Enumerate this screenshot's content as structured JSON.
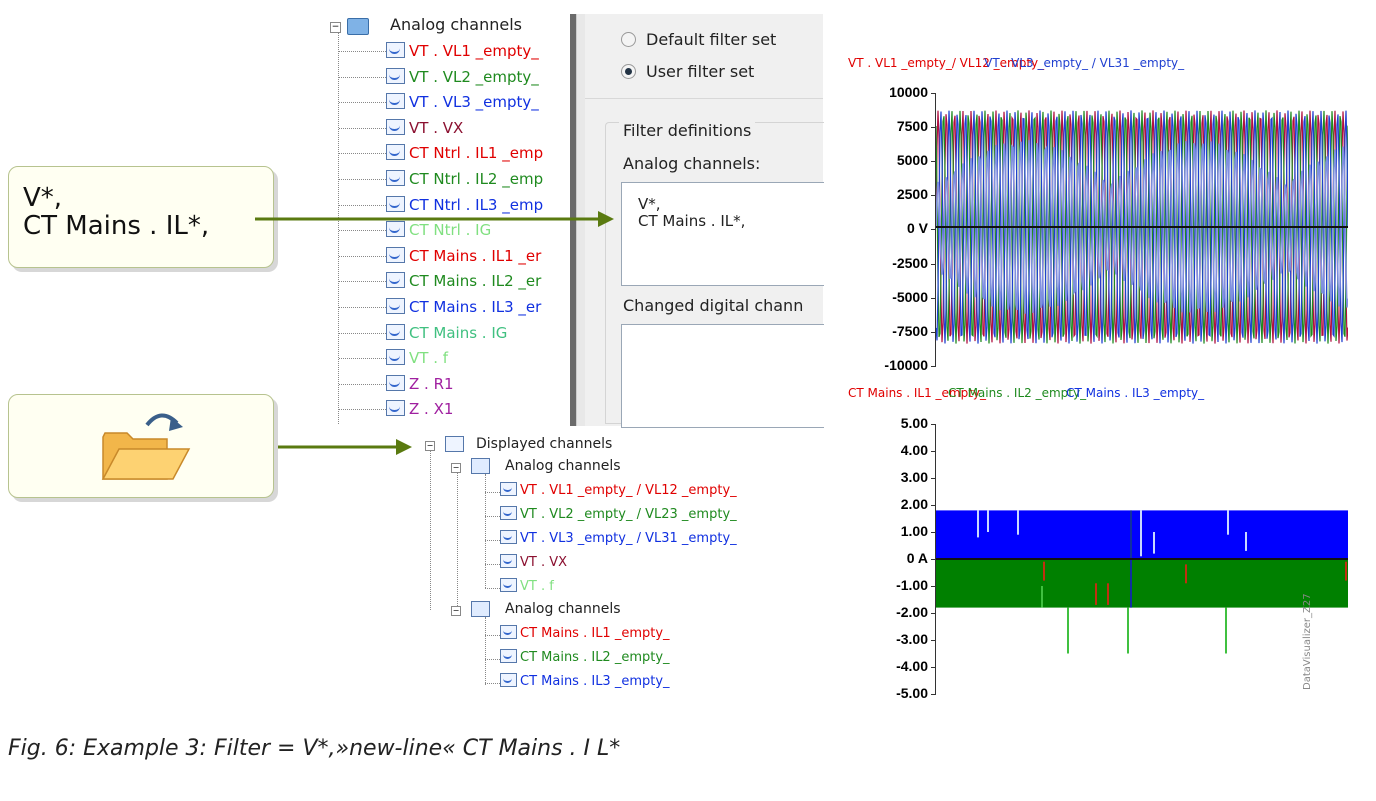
{
  "top_tree": {
    "root_label": "Analog channels",
    "items": [
      {
        "label": "VT . VL1 _empty_",
        "color": "#e00000"
      },
      {
        "label": "VT . VL2 _empty_",
        "color": "#1f8a1f"
      },
      {
        "label": "VT . VL3 _empty_",
        "color": "#1030e0"
      },
      {
        "label": "VT . VX",
        "color": "#8b1030"
      },
      {
        "label": "CT Ntrl . IL1 _emp",
        "color": "#e00000"
      },
      {
        "label": "CT Ntrl . IL2 _emp",
        "color": "#1f8a1f"
      },
      {
        "label": "CT Ntrl . IL3 _emp",
        "color": "#1030e0"
      },
      {
        "label": "CT Ntrl . IG",
        "color": "#80e080"
      },
      {
        "label": "CT Mains . IL1 _er",
        "color": "#e00000"
      },
      {
        "label": "CT Mains . IL2 _er",
        "color": "#1f8a1f"
      },
      {
        "label": "CT Mains . IL3 _er",
        "color": "#1030e0"
      },
      {
        "label": "CT Mains . IG",
        "color": "#40c080"
      },
      {
        "label": "VT . f",
        "color": "#80e080"
      },
      {
        "label": "Z . R1",
        "color": "#a020a0"
      },
      {
        "label": "Z . X1",
        "color": "#a020a0"
      }
    ]
  },
  "filter_panel": {
    "radio_default": "Default filter set",
    "radio_user": "User filter set",
    "group_title": "Filter definitions",
    "analog_label": "Analog channels:",
    "analog_value_line1": "V*,",
    "analog_value_line2": "CT Mains . IL*,",
    "digital_label": "Changed digital chann"
  },
  "callout1": {
    "line1": "V*,",
    "line2": "CT Mains . IL*,"
  },
  "callout2": {
    "icon": "folder-reload-icon"
  },
  "displayed_tree": {
    "root_label": "Displayed channels",
    "group1_label": "Analog channels",
    "group1_items": [
      {
        "label": "VT . VL1 _empty_ / VL12 _empty_",
        "color": "#e00000"
      },
      {
        "label": "VT . VL2 _empty_ / VL23 _empty_",
        "color": "#1f8a1f"
      },
      {
        "label": "VT . VL3 _empty_ / VL31 _empty_",
        "color": "#1030e0"
      },
      {
        "label": "VT . VX",
        "color": "#8b1030"
      },
      {
        "label": "VT . f",
        "color": "#80e080"
      }
    ],
    "group2_label": "Analog channels",
    "group2_items": [
      {
        "label": "CT Mains . IL1 _empty_",
        "color": "#e00000"
      },
      {
        "label": "CT Mains . IL2 _empty_",
        "color": "#1f8a1f"
      },
      {
        "label": "CT Mains . IL3 _empty_",
        "color": "#1030e0"
      }
    ]
  },
  "chart_data": [
    {
      "type": "line",
      "legend_text_a": "VT . VL1 _empty_/ VL12 _empty_",
      "legend_text_b": "VT . VL3 _empty_ / VL31 _empty_",
      "yticks": [
        "10000",
        "7500",
        "5000",
        "2500",
        "0 V",
        "-2500",
        "-5000",
        "-7500",
        "-10000"
      ],
      "ylim": [
        -10000,
        10000
      ],
      "series_colors": [
        "#b01040",
        "#1f8a1f",
        "#2040d0",
        "#8090e0"
      ]
    },
    {
      "type": "line",
      "legend_items": [
        {
          "label": "CT Mains . IL1 _empty_",
          "color": "#e00000"
        },
        {
          "label": "CT Mains . IL2 _empty_",
          "color": "#1f8a1f"
        },
        {
          "label": "CT Mains . IL3 _empty_",
          "color": "#1030e0"
        }
      ],
      "yticks": [
        "5.00",
        "4.00",
        "3.00",
        "2.00",
        "1.00",
        "0 A",
        "-1.00",
        "-2.00",
        "-3.00",
        "-4.00",
        "-5.00"
      ],
      "ylim": [
        -5,
        5
      ],
      "band_blue_range": [
        0,
        1.8
      ],
      "band_green_range": [
        -1.8,
        0
      ]
    }
  ],
  "watermark": "DataVisualizer_Z27",
  "caption": "Fig. 6: Example 3: Filter = V*,»new-line« CT Mains . I L*"
}
